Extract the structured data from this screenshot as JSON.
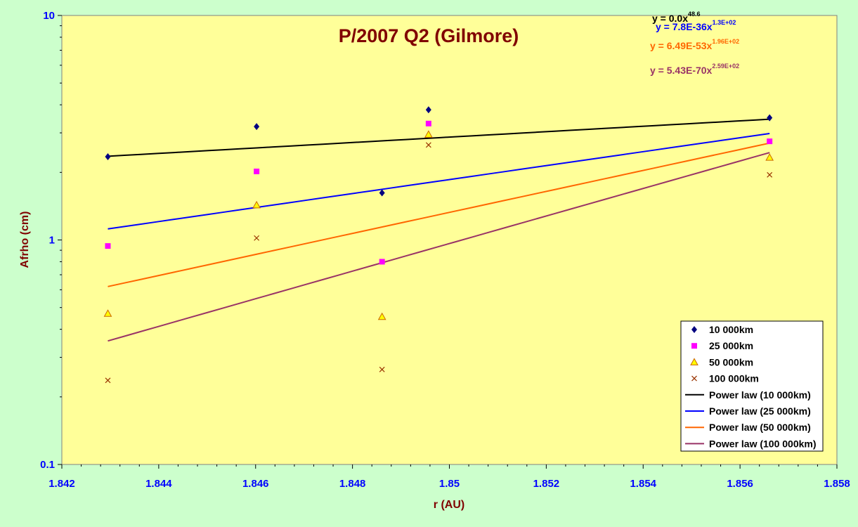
{
  "chart_data": {
    "type": "scatter",
    "title": "P/2007 Q2 (Gilmore)",
    "xlabel": "r (AU)",
    "ylabel": "Afrho (cm)",
    "xlim": [
      1.842,
      1.858
    ],
    "ylim": [
      0.1,
      10
    ],
    "yscale": "log",
    "x_ticks": [
      "1.842",
      "1.844",
      "1.846",
      "1.848",
      "1.85",
      "1.852",
      "1.854",
      "1.856",
      "1.858"
    ],
    "y_ticks": [
      "0.1",
      "1",
      "10"
    ],
    "grid": false,
    "legend_position": "bottom-right",
    "series": [
      {
        "name": "10 000km",
        "marker": "diamond",
        "color": "#000080",
        "x": [
          1.84295,
          1.84602,
          1.84861,
          1.84957,
          1.85661
        ],
        "y": [
          2.35,
          3.2,
          1.62,
          3.8,
          3.5
        ]
      },
      {
        "name": "25 000km",
        "marker": "square",
        "color": "#ff00ff",
        "x": [
          1.84295,
          1.84602,
          1.84861,
          1.84957,
          1.85661
        ],
        "y": [
          0.94,
          2.02,
          0.8,
          3.3,
          2.75
        ]
      },
      {
        "name": "50 000km",
        "marker": "triangle",
        "color": "#ffff00",
        "stroke": "#cc6600",
        "x": [
          1.84295,
          1.84602,
          1.84861,
          1.84957,
          1.85661
        ],
        "y": [
          0.47,
          1.43,
          0.455,
          2.95,
          2.33
        ]
      },
      {
        "name": "100 000km",
        "marker": "x",
        "color": "#993300",
        "x": [
          1.84295,
          1.84602,
          1.84861,
          1.84957,
          1.85661
        ],
        "y": [
          0.237,
          1.02,
          0.265,
          2.65,
          1.95
        ]
      }
    ],
    "trendlines": [
      {
        "name": "Power law (10 000km)",
        "color": "#000000",
        "x": [
          1.84295,
          1.85661
        ],
        "y": [
          2.36,
          3.45
        ]
      },
      {
        "name": "Power law (25 000km)",
        "color": "#0000ff",
        "x": [
          1.84295,
          1.85661
        ],
        "y": [
          1.12,
          2.98
        ]
      },
      {
        "name": "Power law (50 000km)",
        "color": "#ff6600",
        "x": [
          1.84295,
          1.85661
        ],
        "y": [
          0.62,
          2.7
        ]
      },
      {
        "name": "Power law (100 000km)",
        "color": "#993366",
        "x": [
          1.84295,
          1.85661
        ],
        "y": [
          0.355,
          2.45
        ]
      }
    ],
    "equations": [
      {
        "base": "y = 0.0x",
        "exp": "48.6",
        "color": "#000000"
      },
      {
        "base": "y = 7.8E-36x",
        "exp": "1.3E+02",
        "color": "#0000ff"
      },
      {
        "base": "y = 6.49E-53x",
        "exp": "1.96E+02",
        "color": "#ff6600"
      },
      {
        "base": "y = 5.43E-70x",
        "exp": "2.59E+02",
        "color": "#993366"
      }
    ],
    "colors": {
      "plot_background": "#ffff99",
      "page_background": "#ccffcc",
      "title": "#800000",
      "ticks": "#0000ff"
    }
  }
}
